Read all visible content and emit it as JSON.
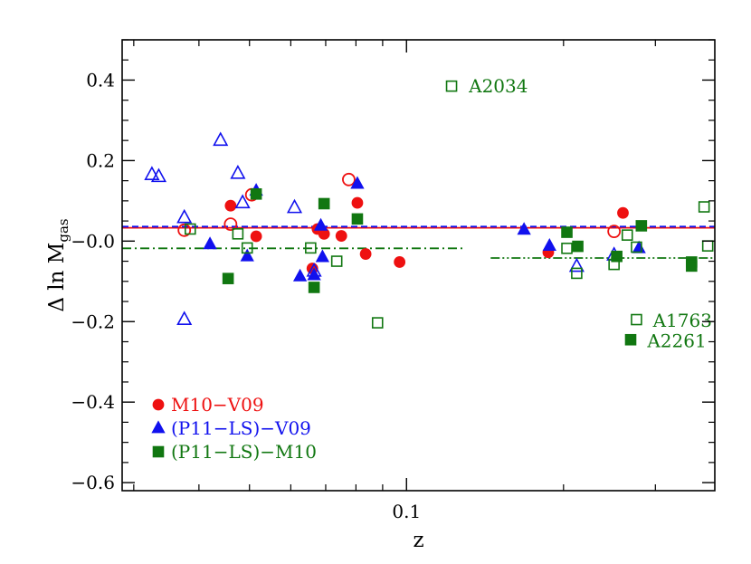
{
  "chart_data": {
    "type": "scatter",
    "xlabel": "z",
    "ylabel": "Δ ln M",
    "ylabel_sub": "gas",
    "xscale": "log",
    "xlim": [
      0.0285,
      0.39
    ],
    "ylim": [
      -0.62,
      0.5
    ],
    "yticks": [
      0.4,
      0.2,
      0.0,
      -0.2,
      -0.4,
      -0.6
    ],
    "ytick_labels": [
      "0.4",
      "0.2",
      "−0.0",
      "−0.2",
      "−0.4",
      "−0.6"
    ],
    "xticks": [
      0.1
    ],
    "xtick_labels": [
      "0.1"
    ],
    "legend_position": "bottom-left",
    "colors": {
      "M10-V09": "#ee1111",
      "P11LS-V09": "#1111ee",
      "P11LS-M10": "#117711"
    },
    "series": [
      {
        "key": "m10v09",
        "name": "M10−V09",
        "color": "#ee1111",
        "marker": "circle",
        "filled": [
          [
            0.046,
            0.088
          ],
          [
            0.0515,
            0.012
          ],
          [
            0.066,
            -0.068
          ],
          [
            0.0675,
            0.03
          ],
          [
            0.0695,
            0.018
          ],
          [
            0.075,
            0.013
          ],
          [
            0.0805,
            0.095
          ],
          [
            0.0835,
            -0.032
          ],
          [
            0.097,
            -0.052
          ],
          [
            0.187,
            -0.028
          ],
          [
            0.26,
            0.07
          ]
        ],
        "open": [
          [
            0.0375,
            0.027
          ],
          [
            0.046,
            0.042
          ],
          [
            0.0505,
            0.115
          ],
          [
            0.0775,
            0.153
          ],
          [
            0.25,
            0.024
          ]
        ]
      },
      {
        "key": "p11v09",
        "name": "(P11−LS)−V09",
        "color": "#1111ee",
        "marker": "triangle",
        "filled": [
          [
            0.042,
            -0.008
          ],
          [
            0.0495,
            -0.038
          ],
          [
            0.0515,
            0.125
          ],
          [
            0.0625,
            -0.088
          ],
          [
            0.0665,
            -0.085
          ],
          [
            0.0685,
            0.038
          ],
          [
            0.069,
            -0.04
          ],
          [
            0.0805,
            0.142
          ],
          [
            0.168,
            0.028
          ],
          [
            0.188,
            -0.012
          ],
          [
            0.279,
            -0.018
          ]
        ],
        "open": [
          [
            0.0325,
            0.165
          ],
          [
            0.0335,
            0.16
          ],
          [
            0.0375,
            0.058
          ],
          [
            0.0375,
            -0.195
          ],
          [
            0.044,
            0.25
          ],
          [
            0.0475,
            0.168
          ],
          [
            0.0485,
            0.095
          ],
          [
            0.061,
            0.083
          ],
          [
            0.0665,
            -0.075
          ],
          [
            0.212,
            -0.063
          ],
          [
            0.25,
            -0.035
          ]
        ]
      },
      {
        "key": "p11m10",
        "name": "(P11−LS)−M10",
        "color": "#117711",
        "marker": "square",
        "filled": [
          [
            0.0455,
            -0.093
          ],
          [
            0.0515,
            0.117
          ],
          [
            0.0665,
            -0.115
          ],
          [
            0.0695,
            0.093
          ],
          [
            0.0805,
            0.055
          ],
          [
            0.203,
            0.022
          ],
          [
            0.213,
            -0.013
          ],
          [
            0.253,
            -0.038
          ],
          [
            0.269,
            -0.245
          ],
          [
            0.282,
            0.038
          ],
          [
            0.352,
            -0.052
          ],
          [
            0.352,
            -0.062
          ]
        ],
        "open": [
          [
            0.0385,
            0.03
          ],
          [
            0.0475,
            0.018
          ],
          [
            0.0495,
            -0.017
          ],
          [
            0.0655,
            -0.017
          ],
          [
            0.0735,
            -0.05
          ],
          [
            0.088,
            -0.203
          ],
          [
            0.122,
            0.385
          ],
          [
            0.203,
            -0.018
          ],
          [
            0.212,
            -0.08
          ],
          [
            0.25,
            -0.058
          ],
          [
            0.265,
            0.015
          ],
          [
            0.276,
            -0.015
          ],
          [
            0.276,
            -0.195
          ],
          [
            0.372,
            0.085
          ],
          [
            0.378,
            -0.012
          ]
        ]
      }
    ],
    "lines": [
      {
        "key": "red-solid",
        "color": "#ee1111",
        "dash": "solid",
        "y": 0.033,
        "x_range": [
          0.0285,
          0.39
        ]
      },
      {
        "key": "blue-dashed",
        "color": "#1111ee",
        "dash": "dashed",
        "y": 0.036,
        "x_range": [
          0.0285,
          0.39
        ]
      },
      {
        "key": "green-dashdot-low",
        "color": "#117711",
        "dash": "dashdot",
        "y": -0.018,
        "x_range": [
          0.0285,
          0.128
        ]
      },
      {
        "key": "green-dashdotdot-high",
        "color": "#117711",
        "dash": "dashdotdot",
        "y": -0.042,
        "x_range": [
          0.145,
          0.39
        ]
      }
    ],
    "annotations": [
      {
        "text": "A2034",
        "x": 0.126,
        "y": 0.385,
        "color": "#117711"
      },
      {
        "text": "A1763",
        "x": 0.284,
        "y": -0.197,
        "color": "#117711"
      },
      {
        "text": "A2261",
        "x": 0.277,
        "y": -0.248,
        "color": "#117711"
      }
    ]
  }
}
